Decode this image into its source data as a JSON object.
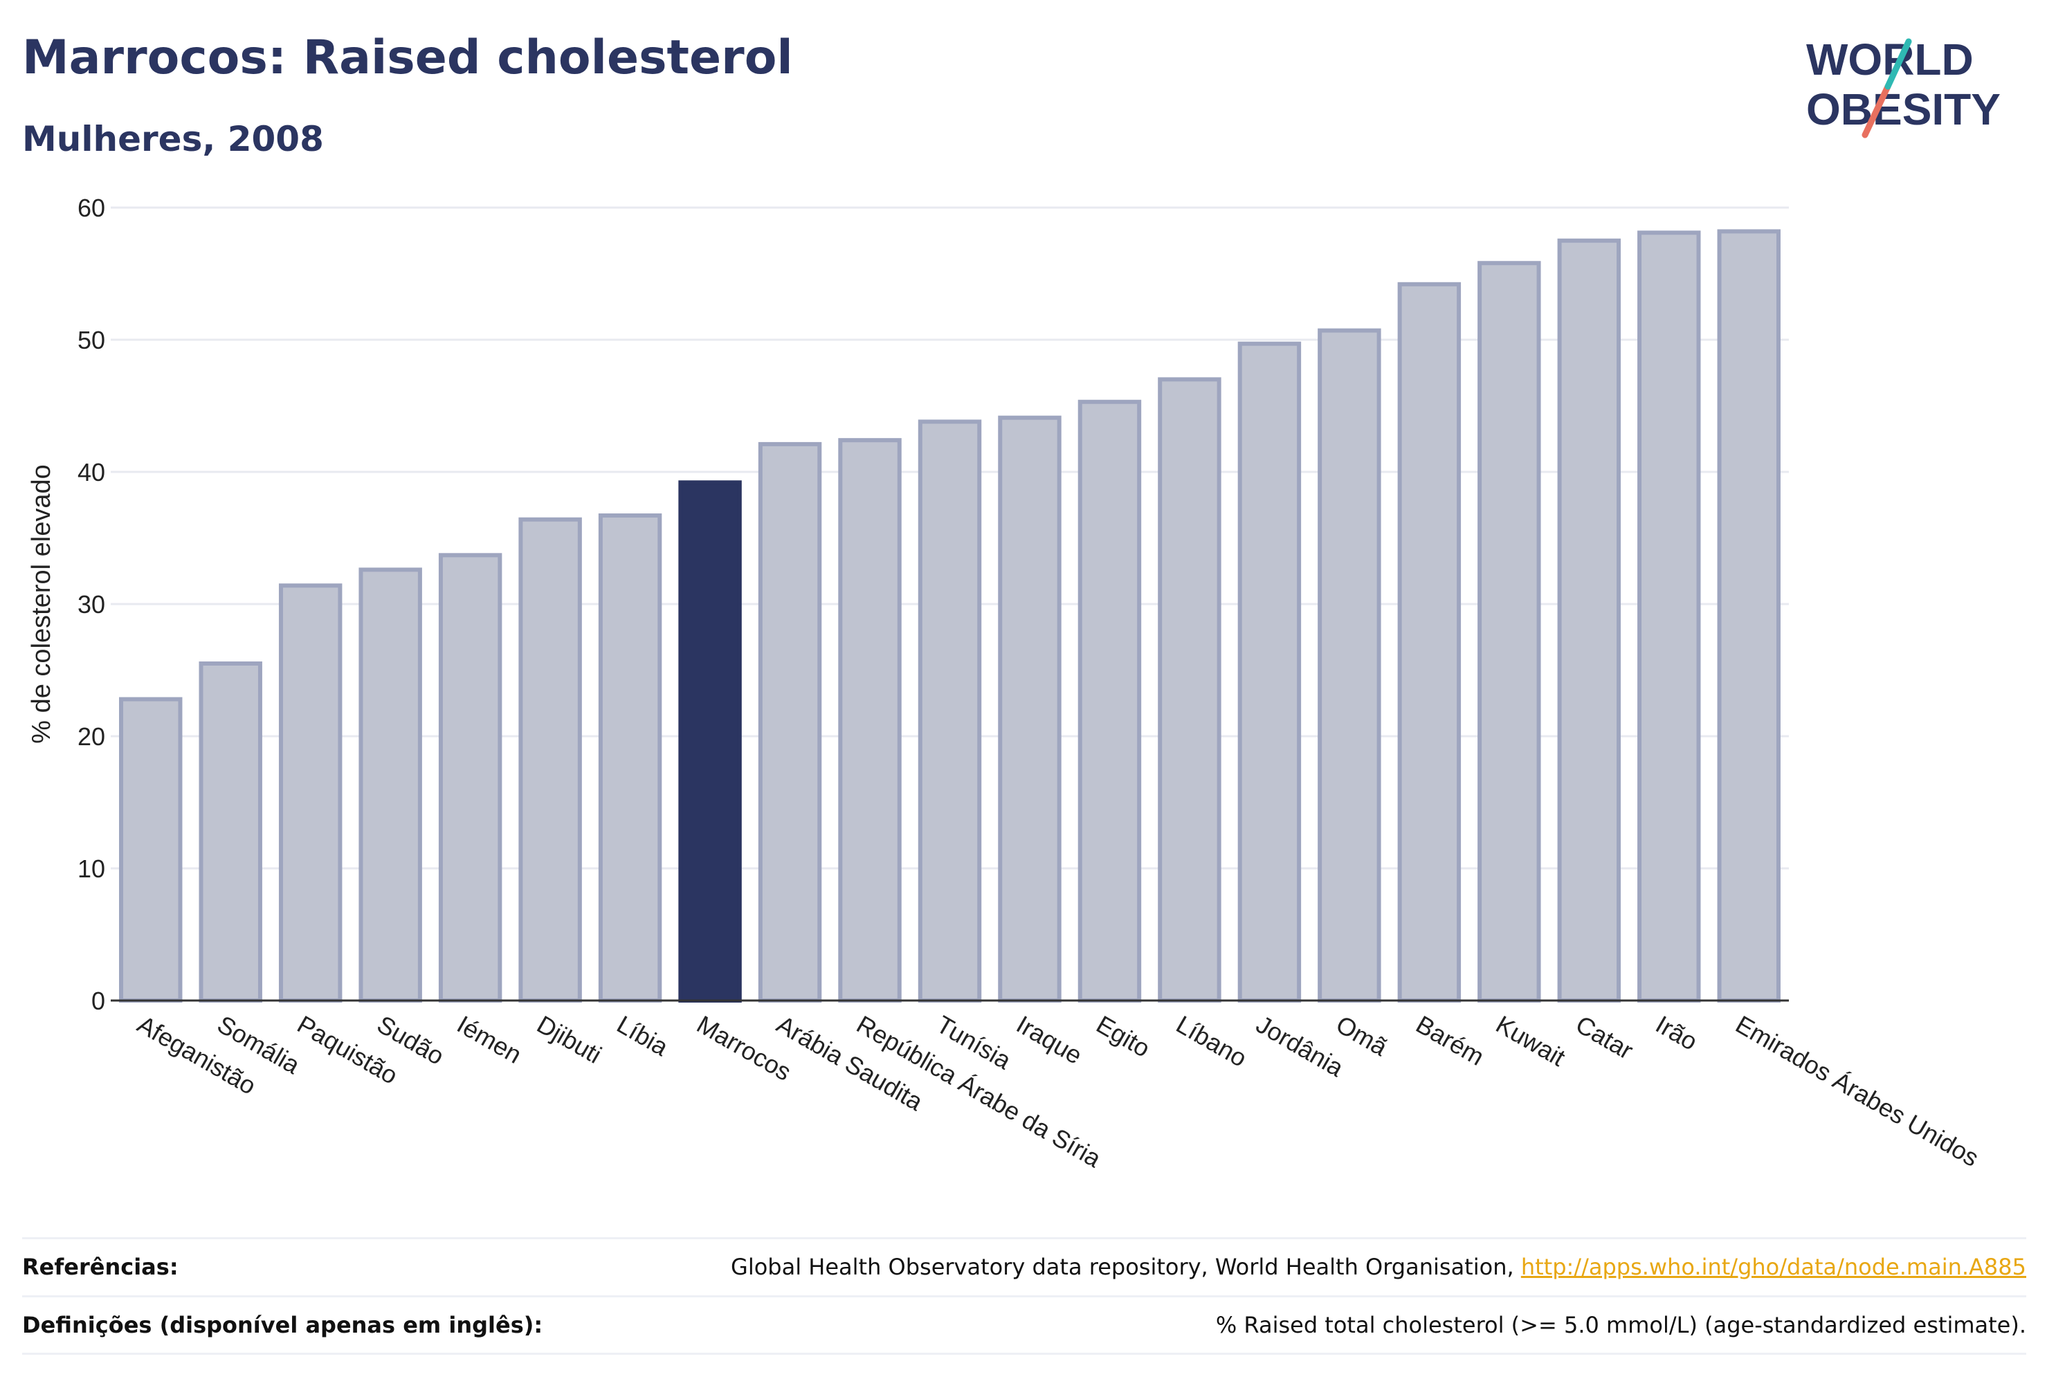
{
  "header": {
    "title": "Marrocos: Raised cholesterol",
    "subtitle": "Mulheres, 2008"
  },
  "logo": {
    "line1": "WORLD",
    "line2": "OBESITY",
    "accent_colors": [
      "#2fb9b3",
      "#e8705f"
    ]
  },
  "colors": {
    "highlight": "#2b3561",
    "bar": "#bfc3d0",
    "bar_stroke": "#9ea5bf",
    "grid": "#e8eaf0"
  },
  "chart_data": {
    "type": "bar",
    "title": "Marrocos: Raised cholesterol",
    "subtitle": "Mulheres, 2008",
    "xlabel": "",
    "ylabel": "% de colesterol elevado",
    "ylim": [
      0,
      60
    ],
    "yticks": [
      0,
      10,
      20,
      30,
      40,
      50,
      60
    ],
    "grid": true,
    "highlight": "Marrocos",
    "categories": [
      "Afeganistão",
      "Somália",
      "Paquistão",
      "Sudão",
      "Iémen",
      "Djibuti",
      "Líbia",
      "Marrocos",
      "Arábia Saudita",
      "República Árabe da Síria",
      "Tunísia",
      "Iraque",
      "Egito",
      "Líbano",
      "Jordânia",
      "Omã",
      "Barém",
      "Kuwait",
      "Catar",
      "Irão",
      "Emirados Árabes Unidos"
    ],
    "values": [
      22.8,
      25.5,
      31.4,
      32.6,
      33.7,
      36.4,
      36.7,
      39.2,
      42.1,
      42.4,
      43.8,
      44.1,
      45.3,
      47.0,
      49.7,
      50.7,
      54.2,
      55.8,
      57.5,
      58.1,
      58.2
    ]
  },
  "footer": {
    "references_label": "Referências:",
    "references_text": "Global Health Observatory data repository, World Health Organisation, ",
    "references_link": "http://apps.who.int/gho/data/node.main.A885",
    "definitions_label": "Definições (disponível apenas em inglês):",
    "definitions_text": "% Raised total cholesterol (>= 5.0 mmol/L) (age-standardized estimate)."
  }
}
